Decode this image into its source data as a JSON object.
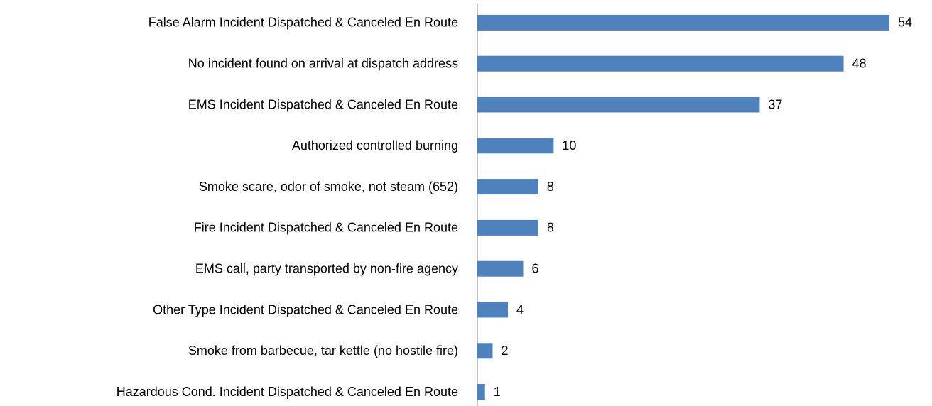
{
  "chart_data": {
    "type": "bar",
    "orientation": "horizontal",
    "categories": [
      "False Alarm Incident Dispatched & Canceled En Route",
      "No incident found on arrival at dispatch address",
      "EMS Incident Dispatched & Canceled En Route",
      "Authorized controlled burning",
      "Smoke scare, odor of smoke, not steam (652)",
      "Fire Incident Dispatched & Canceled En Route",
      "EMS call, party transported by non-fire agency",
      "Other Type Incident Dispatched & Canceled En Route",
      "Smoke from barbecue, tar kettle (no hostile fire)",
      "Hazardous Cond. Incident Dispatched & Canceled En Route"
    ],
    "values": [
      54,
      48,
      37,
      10,
      8,
      8,
      6,
      4,
      2,
      1
    ],
    "color": "#4f81bd"
  }
}
